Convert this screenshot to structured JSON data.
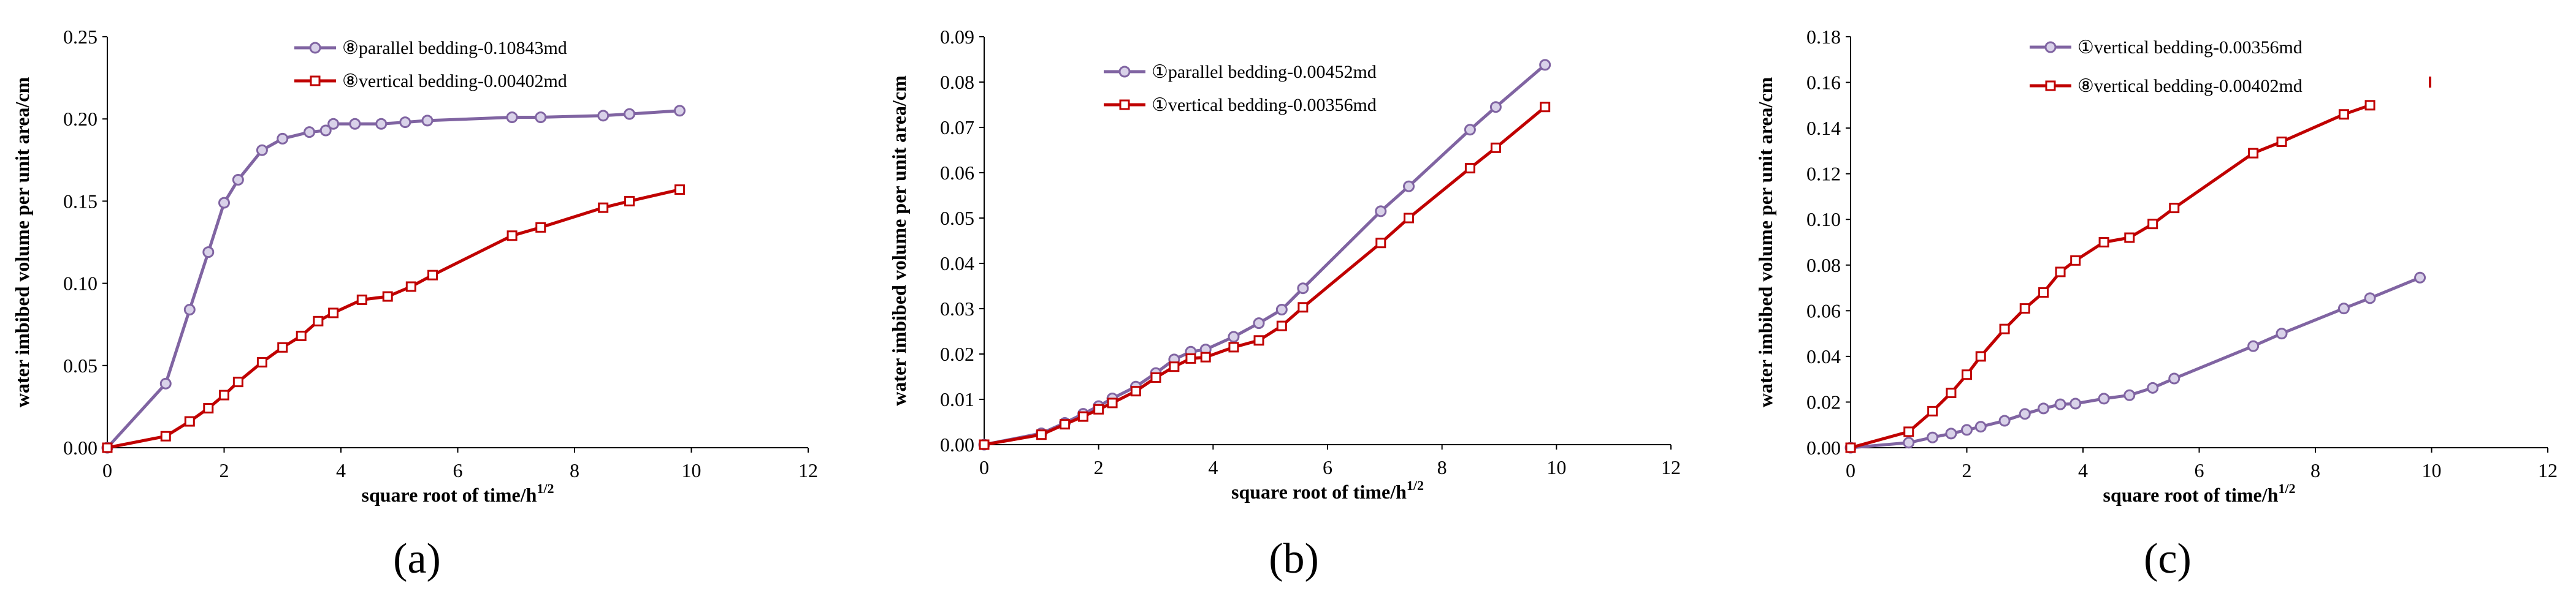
{
  "chart_data": [
    {
      "type": "line",
      "panel_label": "(a)",
      "xlabel": "square root of time/h",
      "xlabel_sup": "1/2",
      "ylabel": "water imbibed volume per unit area/cm",
      "xlim": [
        0,
        12
      ],
      "ylim": [
        0,
        0.25
      ],
      "xticks": [
        0,
        2,
        4,
        6,
        8,
        10,
        12
      ],
      "yticks": [
        0.0,
        0.05,
        0.1,
        0.15,
        0.2,
        0.25
      ],
      "ytick_labels": [
        "0.00",
        "0.05",
        "0.10",
        "0.15",
        "0.20",
        "0.25"
      ],
      "xtick_labels": [
        "0",
        "2",
        "4",
        "6",
        "8",
        "10",
        "12"
      ],
      "legend_position": "top-center",
      "series": [
        {
          "name": "⑧parallel bedding-0.10843md",
          "color": "#8064a2",
          "marker": "circle",
          "x": [
            0,
            1.0,
            1.41,
            1.73,
            2.0,
            2.24,
            2.65,
            3.0,
            3.46,
            3.74,
            3.87,
            4.24,
            4.69,
            5.1,
            5.48,
            6.93,
            7.42,
            8.49,
            8.94,
            9.8
          ],
          "y": [
            0,
            0.039,
            0.084,
            0.119,
            0.149,
            0.163,
            0.181,
            0.188,
            0.192,
            0.193,
            0.197,
            0.197,
            0.197,
            0.198,
            0.199,
            0.201,
            0.201,
            0.202,
            0.203,
            0.205
          ]
        },
        {
          "name": "⑧vertical bedding-0.00402md",
          "color": "#c00000",
          "marker": "square",
          "x": [
            0,
            1.0,
            1.41,
            1.73,
            2.0,
            2.24,
            2.65,
            3.0,
            3.32,
            3.61,
            3.87,
            4.36,
            4.8,
            5.2,
            5.57,
            6.93,
            7.42,
            8.49,
            8.94,
            9.8
          ],
          "y": [
            0,
            0.007,
            0.016,
            0.024,
            0.032,
            0.04,
            0.052,
            0.061,
            0.068,
            0.077,
            0.082,
            0.09,
            0.092,
            0.098,
            0.105,
            0.129,
            0.134,
            0.146,
            0.15,
            0.157
          ]
        }
      ]
    },
    {
      "type": "line",
      "panel_label": "(b)",
      "xlabel": "square root of time/h",
      "xlabel_sup": "1/2",
      "ylabel": "water imbibed volume per unit area/cm",
      "xlim": [
        0,
        12
      ],
      "ylim": [
        0,
        0.09
      ],
      "xticks": [
        0,
        2,
        4,
        6,
        8,
        10,
        12
      ],
      "yticks": [
        0.0,
        0.01,
        0.02,
        0.03,
        0.04,
        0.05,
        0.06,
        0.07,
        0.08,
        0.09
      ],
      "ytick_labels": [
        "0.00",
        "0.01",
        "0.02",
        "0.03",
        "0.04",
        "0.05",
        "0.06",
        "0.07",
        "0.08",
        "0.09"
      ],
      "xtick_labels": [
        "0",
        "2",
        "4",
        "6",
        "8",
        "10",
        "12"
      ],
      "legend_position": "top-left",
      "series": [
        {
          "name": "①parallel bedding-0.00452md",
          "color": "#8064a2",
          "marker": "circle",
          "x": [
            0,
            1.0,
            1.41,
            1.73,
            2.0,
            2.24,
            2.65,
            3.0,
            3.32,
            3.61,
            3.87,
            4.36,
            4.8,
            5.2,
            5.57,
            6.93,
            7.42,
            8.49,
            8.94,
            9.8
          ],
          "y": [
            0,
            0.0025,
            0.0048,
            0.0068,
            0.0085,
            0.0102,
            0.0128,
            0.0158,
            0.0188,
            0.0205,
            0.021,
            0.0238,
            0.0268,
            0.0298,
            0.0345,
            0.0515,
            0.057,
            0.0695,
            0.0745,
            0.0838
          ]
        },
        {
          "name": "①vertical bedding-0.00356md",
          "color": "#c00000",
          "marker": "square",
          "x": [
            0,
            1.0,
            1.41,
            1.73,
            2.0,
            2.24,
            2.65,
            3.0,
            3.32,
            3.61,
            3.87,
            4.36,
            4.8,
            5.2,
            5.57,
            6.93,
            7.42,
            8.49,
            8.94,
            9.8
          ],
          "y": [
            0,
            0.0022,
            0.0045,
            0.0062,
            0.0078,
            0.0092,
            0.0118,
            0.0148,
            0.0172,
            0.019,
            0.0193,
            0.0215,
            0.023,
            0.0262,
            0.0303,
            0.0445,
            0.05,
            0.061,
            0.0655,
            0.0745
          ]
        }
      ]
    },
    {
      "type": "line",
      "panel_label": "(c)",
      "xlabel": "square root of time/h",
      "xlabel_sup": "1/2",
      "ylabel": "water imbibed volume per unit area/cm",
      "xlim": [
        0,
        12
      ],
      "ylim": [
        0,
        0.18
      ],
      "xticks": [
        0,
        2,
        4,
        6,
        8,
        10,
        12
      ],
      "yticks": [
        0.0,
        0.02,
        0.04,
        0.06,
        0.08,
        0.1,
        0.12,
        0.14,
        0.16,
        0.18
      ],
      "ytick_labels": [
        "0.00",
        "0.02",
        "0.04",
        "0.06",
        "0.08",
        "0.10",
        "0.12",
        "0.14",
        "0.16",
        "0.18"
      ],
      "xtick_labels": [
        "0",
        "2",
        "4",
        "6",
        "8",
        "10",
        "12"
      ],
      "legend_position": "top-center",
      "series": [
        {
          "name": "①vertical bedding-0.00356md",
          "color": "#8064a2",
          "marker": "circle",
          "x": [
            0,
            1.0,
            1.41,
            1.73,
            2.0,
            2.24,
            2.65,
            3.0,
            3.32,
            3.61,
            3.87,
            4.36,
            4.8,
            5.2,
            5.57,
            6.93,
            7.42,
            8.49,
            8.94,
            9.8
          ],
          "y": [
            0,
            0.0022,
            0.0045,
            0.0062,
            0.0078,
            0.0092,
            0.0118,
            0.0148,
            0.0172,
            0.019,
            0.0193,
            0.0215,
            0.023,
            0.0262,
            0.0303,
            0.0445,
            0.05,
            0.061,
            0.0655,
            0.0745
          ]
        },
        {
          "name": "⑧vertical bedding-0.00402md",
          "color": "#c00000",
          "marker": "square",
          "x": [
            0,
            1.0,
            1.41,
            1.73,
            2.0,
            2.24,
            2.65,
            3.0,
            3.32,
            3.61,
            3.87,
            4.36,
            4.8,
            5.2,
            5.57,
            6.93,
            7.42,
            8.49,
            8.94
          ],
          "y": [
            0,
            0.007,
            0.016,
            0.024,
            0.032,
            0.04,
            0.052,
            0.061,
            0.068,
            0.077,
            0.082,
            0.09,
            0.092,
            0.098,
            0.105,
            0.129,
            0.134,
            0.146,
            0.15
          ]
        }
      ]
    }
  ]
}
